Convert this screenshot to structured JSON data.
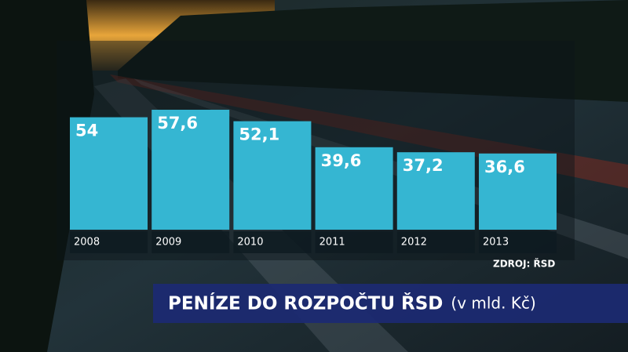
{
  "chart_data": {
    "type": "bar",
    "title": "PENÍZE DO ROZPOČTU ŘSD",
    "subtitle": "(v mld. Kč)",
    "source": "ZDROJ: ŘSD",
    "categories": [
      "2008",
      "2009",
      "2010",
      "2011",
      "2012",
      "2013"
    ],
    "values": [
      54,
      57.6,
      52.1,
      39.6,
      37.2,
      36.6
    ],
    "value_labels": [
      "54",
      "57,6",
      "52,1",
      "39,6",
      "37,2",
      "36,6"
    ],
    "color": "#35b6d2"
  }
}
